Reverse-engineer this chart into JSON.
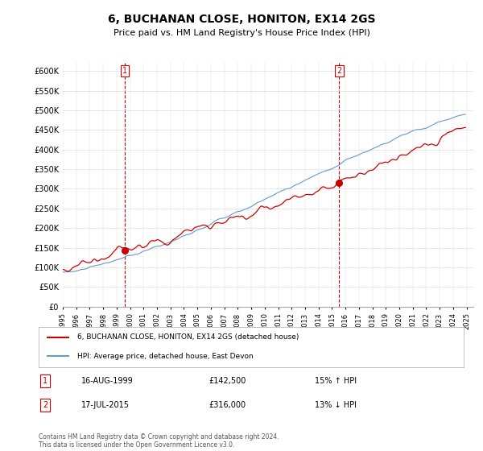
{
  "title": "6, BUCHANAN CLOSE, HONITON, EX14 2GS",
  "subtitle": "Price paid vs. HM Land Registry's House Price Index (HPI)",
  "ylabel_ticks": [
    "£0",
    "£50K",
    "£100K",
    "£150K",
    "£200K",
    "£250K",
    "£300K",
    "£350K",
    "£400K",
    "£450K",
    "£500K",
    "£550K",
    "£600K"
  ],
  "ylim": [
    0,
    620000
  ],
  "yticks": [
    0,
    50000,
    100000,
    150000,
    200000,
    250000,
    300000,
    350000,
    400000,
    450000,
    500000,
    550000,
    600000
  ],
  "x_start_year": 1995,
  "x_end_year": 2025,
  "sale1_date": "16-AUG-1999",
  "sale1_price": 142500,
  "sale1_hpi_diff": "15% ↑ HPI",
  "sale2_date": "17-JUL-2015",
  "sale2_price": 316000,
  "sale2_hpi_diff": "13% ↓ HPI",
  "legend_line1": "6, BUCHANAN CLOSE, HONITON, EX14 2GS (detached house)",
  "legend_line2": "HPI: Average price, detached house, East Devon",
  "footer": "Contains HM Land Registry data © Crown copyright and database right 2024.\nThis data is licensed under the Open Government Licence v3.0.",
  "line_color_price": "#cc0000",
  "line_color_hpi": "#6699cc",
  "marker_color": "#cc0000",
  "vline_color": "#cc0000",
  "background_color": "#ffffff",
  "grid_color": "#dddddd"
}
